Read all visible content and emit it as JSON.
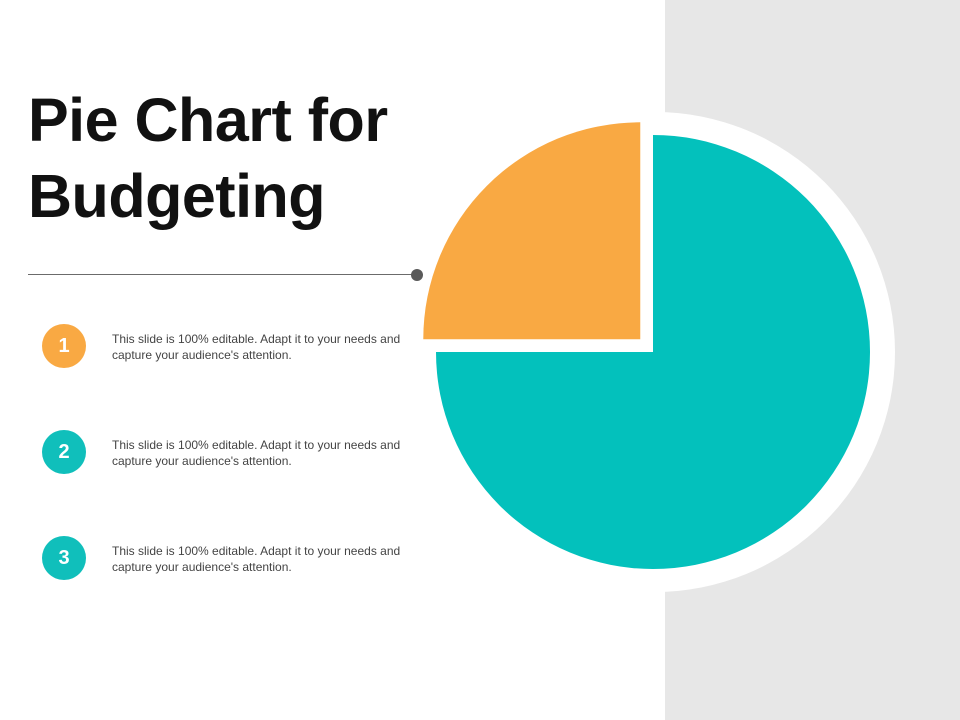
{
  "title_lines": [
    "Pie Chart for",
    "Budgeting"
  ],
  "items": [
    {
      "number": "1",
      "text": "This slide is 100% editable. Adapt it to your needs and capture your audience's attention.",
      "color": "#f9a943"
    },
    {
      "number": "2",
      "text": "This slide is 100% editable. Adapt it to your needs and capture your audience's attention.",
      "color": "#10bfbb"
    },
    {
      "number": "3",
      "text": "This slide is 100% editable. Adapt it to your needs and capture your audience's attention.",
      "color": "#10bfbb"
    }
  ],
  "chart_data": {
    "type": "pie",
    "title": "",
    "slices": [
      {
        "value": 25,
        "color": "#f9a943",
        "exploded": true
      },
      {
        "value": 75,
        "color": "#03c1bc",
        "exploded": false
      }
    ]
  }
}
